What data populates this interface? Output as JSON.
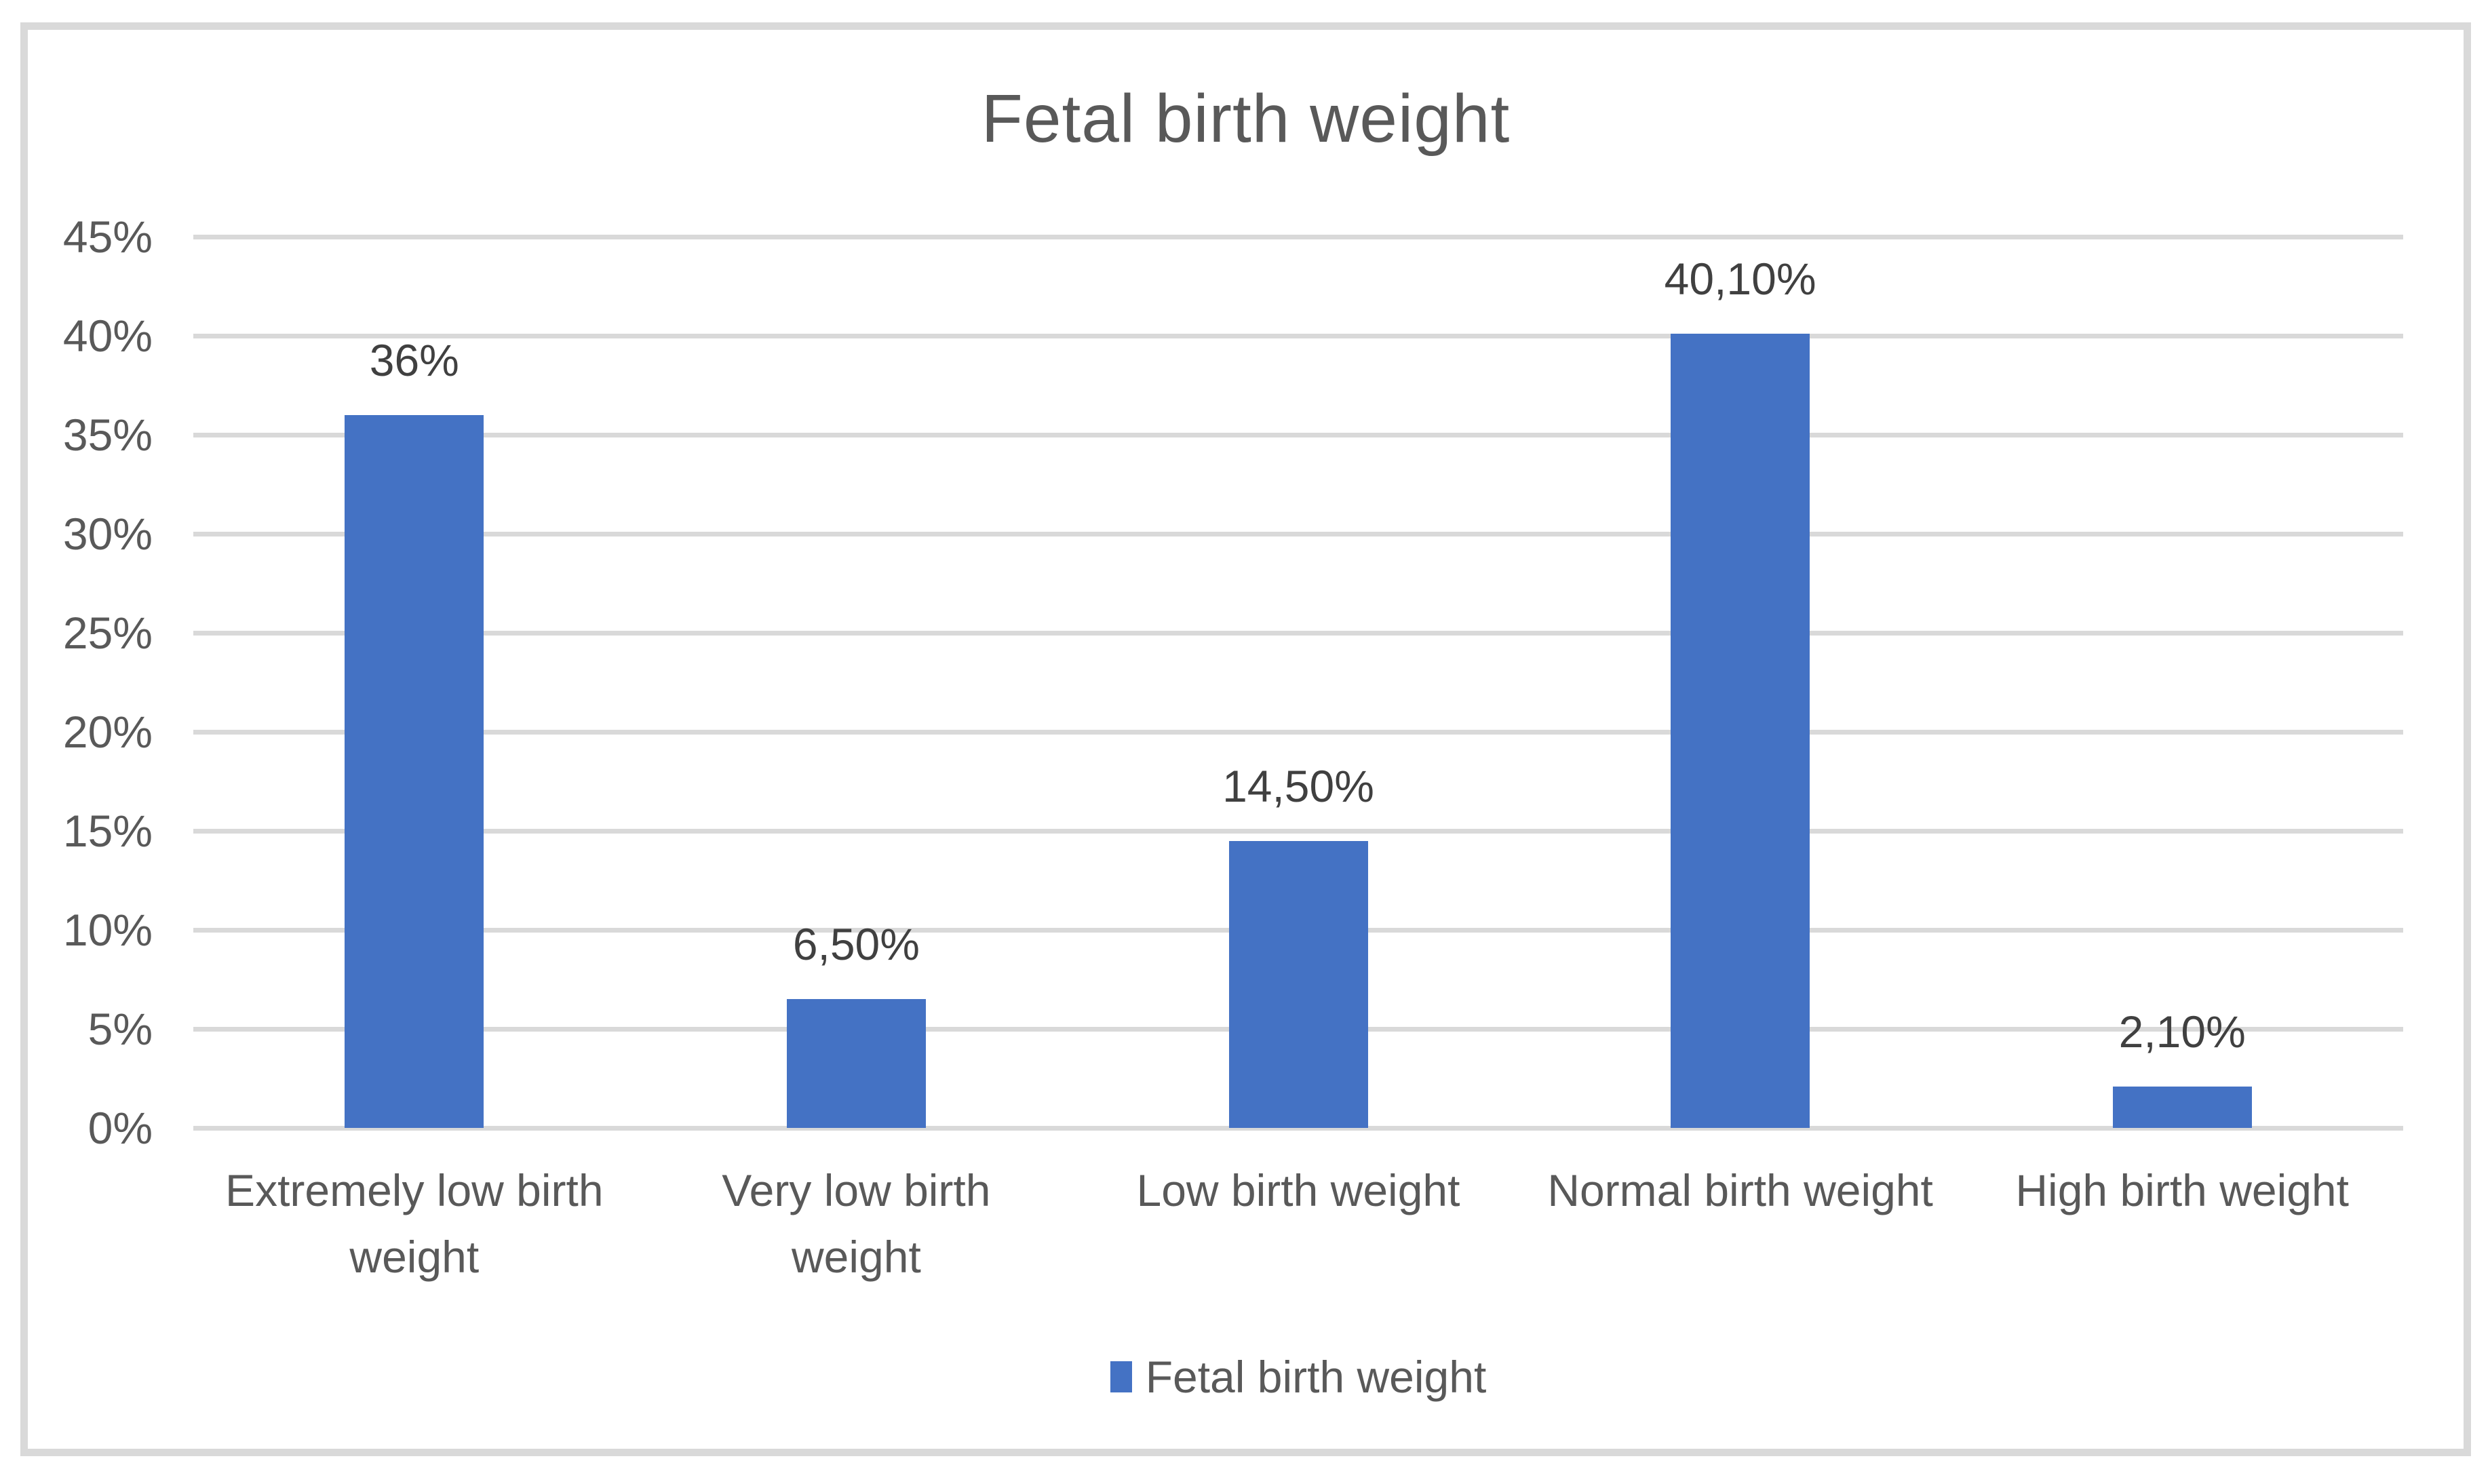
{
  "chart_data": {
    "type": "bar",
    "title": "Fetal birth weight",
    "series_name": "Fetal birth weight",
    "categories": [
      "Extremely low birth\nweight",
      "Very low birth\nweight",
      "Low birth weight",
      "Normal birth weight",
      "High birth weight"
    ],
    "values": [
      36,
      6.5,
      14.5,
      40.1,
      2.1
    ],
    "data_labels": [
      "36%",
      "6,50%",
      "14,50%",
      "40,10%",
      "2,10%"
    ],
    "yticks": [
      "0%",
      "5%",
      "10%",
      "15%",
      "20%",
      "25%",
      "30%",
      "35%",
      "40%",
      "45%"
    ],
    "ylim": [
      0,
      45
    ],
    "ytick_step": 5,
    "grid": true,
    "legend_position": "bottom",
    "colors": {
      "bar": "#4472C4",
      "gridline": "#D9D9D9",
      "frame_border": "#D9D9D9",
      "axis_text": "#595959",
      "data_label_text": "#404040",
      "title_text": "#595959"
    }
  }
}
